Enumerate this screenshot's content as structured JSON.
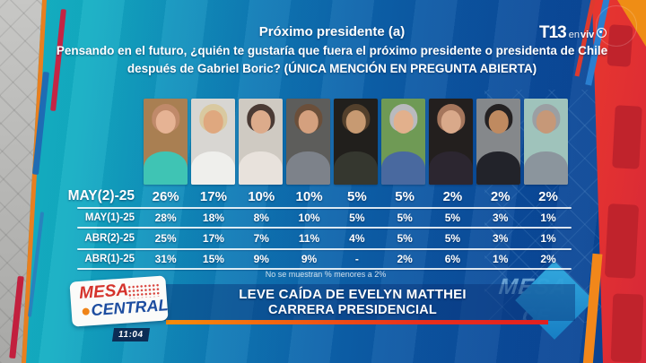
{
  "channel": {
    "logo_text": "T13",
    "live_prefix": "en",
    "live_word": "viv"
  },
  "header": {
    "title": "Próximo presidente (a)",
    "question_line1": "Pensando en el futuro, ¿quién te gustaría que fuera el próximo presidente o presidenta de Chile",
    "question_line2": "después de Gabriel Boric? (ÚNICA MENCIÓN EN PREGUNTA ABIERTA)"
  },
  "chart_data": {
    "type": "table",
    "title": "Próximo presidente (a)",
    "rows": [
      {
        "label": "MAY(2)-25",
        "values": [
          "26%",
          "17%",
          "10%",
          "10%",
          "5%",
          "5%",
          "2%",
          "2%",
          "2%"
        ]
      },
      {
        "label": "MAY(1)-25",
        "values": [
          "28%",
          "18%",
          "8%",
          "10%",
          "5%",
          "5%",
          "5%",
          "3%",
          "1%"
        ]
      },
      {
        "label": "ABR(2)-25",
        "values": [
          "25%",
          "17%",
          "7%",
          "11%",
          "4%",
          "5%",
          "5%",
          "3%",
          "1%"
        ]
      },
      {
        "label": "ABR(1)-25",
        "values": [
          "31%",
          "15%",
          "9%",
          "9%",
          "-",
          "2%",
          "6%",
          "1%",
          "2%"
        ]
      }
    ],
    "footnote": "No se muestran % menores a 2%"
  },
  "portraits": [
    {
      "bg": "#a97f52",
      "hair": "#c08a6a",
      "skin": "#e6b394",
      "top": "#3fc4b4"
    },
    {
      "bg": "#d8d6d2",
      "hair": "#d9c9a0",
      "skin": "#dfa87f",
      "top": "#efefec"
    },
    {
      "bg": "#cfcac2",
      "hair": "#4a3a34",
      "skin": "#dcab8b",
      "top": "#e8e2dc"
    },
    {
      "bg": "#5d5d5b",
      "hair": "#6b4f3a",
      "skin": "#d4a07e",
      "top": "#7d828a"
    },
    {
      "bg": "#211f1c",
      "hair": "#53402c",
      "skin": "#c79a72",
      "top": "#35372f"
    },
    {
      "bg": "#6f9a55",
      "hair": "#b9babe",
      "skin": "#e2b08c",
      "top": "#49699f"
    },
    {
      "bg": "#231f1e",
      "hair": "#a5765c",
      "skin": "#d9a98a",
      "top": "#2c2630"
    },
    {
      "bg": "#85888b",
      "hair": "#242122",
      "skin": "#bf8a60",
      "top": "#22232a"
    },
    {
      "bg": "#9fc3bb",
      "hair": "#9b9fa3",
      "skin": "#c69878",
      "top": "#8b959d"
    }
  ],
  "banner": {
    "show_line1": "MESA",
    "show_line2": "CENTRAL",
    "time": "11:04",
    "headline_line1": "LEVE CAÍDA DE EVELYN MATTHEI",
    "headline_line2": "CARRERA PRESIDENCIAL"
  },
  "watermark_line1": "MESA",
  "watermark_line2": "CE",
  "colors": {
    "teal": "#16bac7",
    "blue": "#0d64ac",
    "dark_blue": "#0a4292",
    "red_panel": "#e2372b",
    "orange": "#f1871a",
    "underline_start": "#f78c0a",
    "underline_end": "#e2201f",
    "logo_red": "#d5322b",
    "logo_blue": "#1d4da0"
  }
}
